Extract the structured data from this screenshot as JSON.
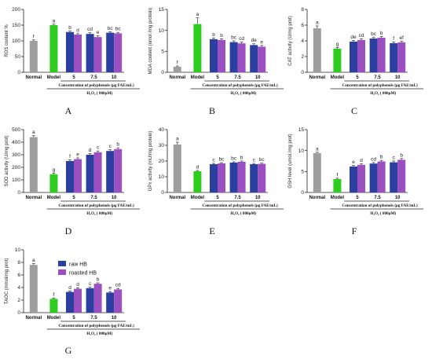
{
  "colors": {
    "normal": "#9e9e9e",
    "model": "#2ecc1f",
    "raw": "#2a3fa0",
    "roasted": "#9b4fc0"
  },
  "legend": {
    "raw": "raw HB",
    "roasted": "roasted HB"
  },
  "common": {
    "categories": [
      "Normal",
      "Model",
      "5",
      "7.5",
      "10"
    ],
    "concentration_label": "Concentration of polyphenols (μg FAE/mL)",
    "h2o2_label": "H₂O₂ ( 800μM)"
  },
  "chart_data": [
    {
      "panel": "A",
      "type": "bar",
      "ylabel": "ROS content %",
      "ylim": [
        0,
        200
      ],
      "yticks": [
        0,
        50,
        100,
        150,
        200
      ],
      "normal": {
        "value": 100,
        "err": 3,
        "label": "f"
      },
      "model": {
        "value": 150,
        "err": 3,
        "label": "a"
      },
      "raw": {
        "values": [
          128,
          122,
          126
        ],
        "errs": [
          3,
          4,
          3
        ],
        "labels": [
          "b",
          "cd",
          "bc"
        ]
      },
      "roasted": {
        "values": [
          120,
          112,
          124
        ],
        "errs": [
          3,
          4,
          3
        ],
        "labels": [
          "d",
          "e",
          "bc"
        ]
      }
    },
    {
      "panel": "B",
      "type": "bar",
      "ylabel": "MDA content (nmol /mg protein)",
      "ylim": [
        0,
        15
      ],
      "yticks": [
        0,
        5,
        10,
        15
      ],
      "normal": {
        "value": 1.3,
        "err": 0.2,
        "label": "f"
      },
      "model": {
        "value": 11.5,
        "err": 1.5,
        "label": "a"
      },
      "raw": {
        "values": [
          7.9,
          7.2,
          6.5
        ],
        "errs": [
          0.3,
          0.3,
          0.3
        ],
        "labels": [
          "b",
          "bc",
          "de"
        ]
      },
      "roasted": {
        "values": [
          7.7,
          6.9,
          6.1
        ],
        "errs": [
          0.3,
          0.3,
          0.3
        ],
        "labels": [
          "b",
          "cd",
          "e"
        ]
      }
    },
    {
      "panel": "C",
      "type": "bar",
      "ylabel": "CAT activity (U/mg prot)",
      "ylim": [
        0,
        8
      ],
      "yticks": [
        0,
        2,
        4,
        6,
        8
      ],
      "normal": {
        "value": 5.6,
        "err": 0.3,
        "label": "a"
      },
      "model": {
        "value": 3.0,
        "err": 0.15,
        "label": "g"
      },
      "raw": {
        "values": [
          3.9,
          4.3,
          3.7
        ],
        "errs": [
          0.15,
          0.15,
          0.15
        ],
        "labels": [
          "de",
          "bc",
          "f"
        ]
      },
      "roasted": {
        "values": [
          4.1,
          4.4,
          3.8
        ],
        "errs": [
          0.15,
          0.15,
          0.15
        ],
        "labels": [
          "cd",
          "b",
          "ef"
        ]
      }
    },
    {
      "panel": "D",
      "type": "bar",
      "ylabel": "SOD activity (U/mg prot)",
      "ylim": [
        0,
        500
      ],
      "yticks": [
        0,
        100,
        200,
        300,
        400,
        500
      ],
      "normal": {
        "value": 440,
        "err": 12,
        "label": "a"
      },
      "model": {
        "value": 145,
        "err": 8,
        "label": "g"
      },
      "raw": {
        "values": [
          250,
          300,
          330
        ],
        "errs": [
          10,
          10,
          10
        ],
        "labels": [
          "f",
          "d",
          "c"
        ]
      },
      "roasted": {
        "values": [
          265,
          320,
          345
        ],
        "errs": [
          10,
          10,
          10
        ],
        "labels": [
          "e",
          "c",
          "b"
        ]
      }
    },
    {
      "panel": "E",
      "type": "bar",
      "ylabel": "GPx activity (mU/mg protein)",
      "ylim": [
        0,
        40
      ],
      "yticks": [
        0,
        10,
        20,
        30,
        40
      ],
      "normal": {
        "value": 30.5,
        "err": 1.5,
        "label": "a"
      },
      "model": {
        "value": 13.5,
        "err": 0.5,
        "label": "d"
      },
      "raw": {
        "values": [
          18,
          19,
          18
        ],
        "errs": [
          0.5,
          0.5,
          0.5
        ],
        "labels": [
          "c",
          "bc",
          "c"
        ]
      },
      "roasted": {
        "values": [
          18.5,
          19.5,
          18.2
        ],
        "errs": [
          0.5,
          0.5,
          0.5
        ],
        "labels": [
          "bc",
          "b",
          "bc"
        ]
      }
    },
    {
      "panel": "F",
      "type": "bar",
      "ylabel": "GSH level (umol./mg prot)",
      "ylim": [
        0,
        15
      ],
      "yticks": [
        0,
        5,
        10,
        15
      ],
      "normal": {
        "value": 9.4,
        "err": 0.2,
        "label": "a"
      },
      "model": {
        "value": 3.2,
        "err": 0.2,
        "label": "f"
      },
      "raw": {
        "values": [
          6.2,
          6.9,
          7.2
        ],
        "errs": [
          0.25,
          0.25,
          0.3
        ],
        "labels": [
          "e",
          "cd",
          "c"
        ]
      },
      "roasted": {
        "values": [
          6.6,
          7.4,
          7.8
        ],
        "errs": [
          0.25,
          0.25,
          0.3
        ],
        "labels": [
          "d",
          "b",
          "b"
        ]
      }
    },
    {
      "panel": "G",
      "type": "bar",
      "ylabel": "TAOC (mmol/mg prot)",
      "ylim": [
        0,
        10
      ],
      "yticks": [
        0,
        2,
        4,
        6,
        8,
        10
      ],
      "normal": {
        "value": 7.6,
        "err": 0.2,
        "label": "a"
      },
      "model": {
        "value": 2.2,
        "err": 0.1,
        "label": "f"
      },
      "raw": {
        "values": [
          3.3,
          3.9,
          3.2
        ],
        "errs": [
          0.15,
          0.15,
          0.15
        ],
        "labels": [
          "d",
          "c",
          "e"
        ]
      },
      "roasted": {
        "values": [
          3.8,
          4.6,
          3.7
        ],
        "errs": [
          0.15,
          0.15,
          0.15
        ],
        "labels": [
          "d",
          "b",
          "cd"
        ]
      }
    }
  ]
}
